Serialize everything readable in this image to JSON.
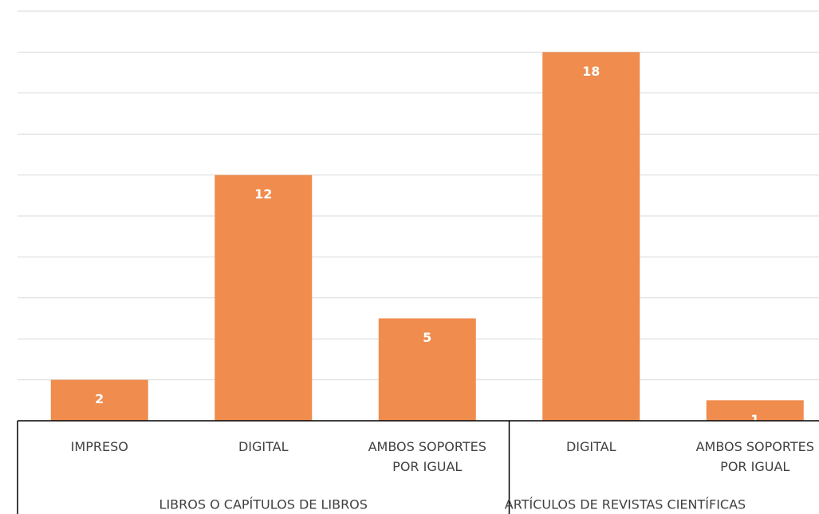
{
  "chart_data": {
    "type": "bar",
    "color": "#ef8c4e",
    "ylim": [
      0,
      20
    ],
    "yticks": [
      0,
      2,
      4,
      6,
      8,
      10,
      12,
      14,
      16,
      18,
      20
    ],
    "grid": true,
    "groups": [
      {
        "name": "LIBROS O CAPÍTULOS DE LIBROS",
        "categories": [
          "IMPRESO",
          "DIGITAL",
          "AMBOS SOPORTES POR IGUAL"
        ],
        "values": [
          2,
          12,
          5
        ]
      },
      {
        "name": "ARTÍCULOS DE REVISTAS CIENTÍFICAS",
        "categories": [
          "DIGITAL",
          "AMBOS SOPORTES POR IGUAL"
        ],
        "values": [
          18,
          1
        ]
      }
    ]
  }
}
